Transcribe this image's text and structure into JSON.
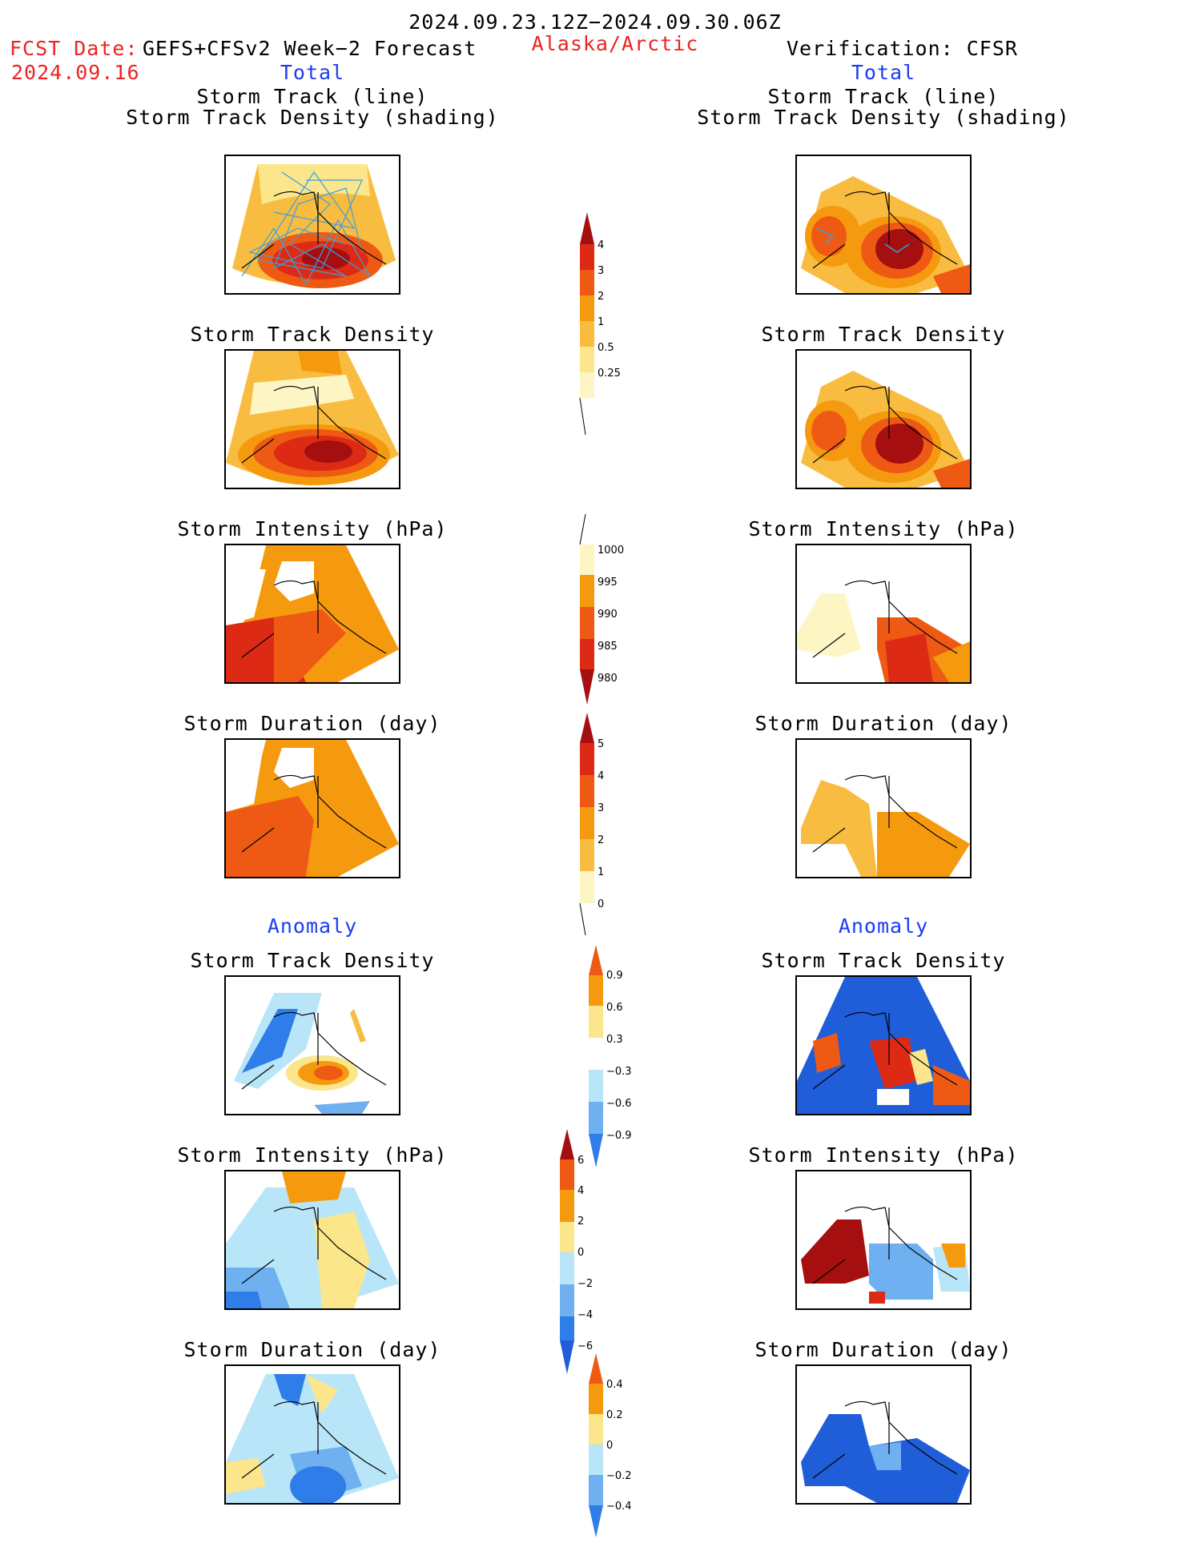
{
  "header": {
    "period": "2024.09.23.12Z−2024.09.30.06Z",
    "region": "Alaska/Arctic",
    "fcst_label": "FCST Date:",
    "fcst_model": "GEFS+CFSv2 Week−2 Forecast",
    "fcst_date": "2024.09.16",
    "verification": "Verification: CFSR"
  },
  "sections": {
    "total": "Total",
    "anomaly": "Anomaly"
  },
  "panel_titles": {
    "track_line": "Storm Track (line)",
    "track_shading": "Storm Track Density (shading)",
    "density": "Storm Track Density",
    "intensity": "Storm Intensity (hPa)",
    "duration": "Storm Duration (day)"
  },
  "colorbars": {
    "density_total": [
      "4",
      "3",
      "2",
      "1",
      "0.5",
      "0.25"
    ],
    "intensity_total": [
      "1000",
      "995",
      "990",
      "985",
      "980"
    ],
    "duration_total": [
      "5",
      "4",
      "3",
      "2",
      "1",
      "0"
    ],
    "density_anom": [
      "0.9",
      "0.6",
      "0.3",
      "−0.3",
      "−0.6",
      "−0.9"
    ],
    "intensity_anom": [
      "6",
      "4",
      "2",
      "0",
      "−2",
      "−4",
      "−6"
    ],
    "duration_anom": [
      "0.4",
      "0.2",
      "0",
      "−0.2",
      "−0.4"
    ]
  },
  "colors": {
    "dark_red": "#a50f0f",
    "red": "#dd2a14",
    "orange_red": "#ee5a14",
    "orange": "#f59a0f",
    "light_orange": "#f8bd40",
    "yellow": "#fbe68c",
    "pale_yellow": "#fdf6c4",
    "light_blue": "#b8e6f8",
    "mid_blue": "#6eb0f0",
    "blue": "#2f7de8",
    "dark_blue": "#1f5ed8",
    "track_line": "#3aa0e0",
    "header_red": "#ee2222",
    "header_blue": "#1c3cf0"
  }
}
